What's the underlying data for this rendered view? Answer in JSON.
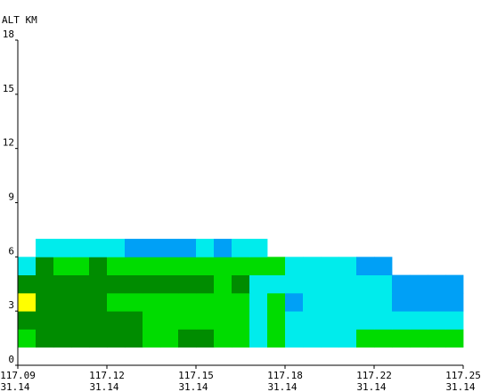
{
  "chart_data": {
    "type": "heatmap",
    "title": "",
    "ylabel": "ALT KM",
    "xlabel": "",
    "ylim": [
      0,
      18
    ],
    "y_ticks": [
      0,
      3,
      6,
      9,
      12,
      15,
      18
    ],
    "x_ticks": [
      {
        "lon": "117.09",
        "lat": "31.14"
      },
      {
        "lon": "117.12",
        "lat": "31.14"
      },
      {
        "lon": "117.15",
        "lat": "31.14"
      },
      {
        "lon": "117.18",
        "lat": "31.14"
      },
      {
        "lon": "117.22",
        "lat": "31.14"
      },
      {
        "lon": "117.25",
        "lat": "31.14"
      }
    ],
    "grid": false,
    "legend": "none",
    "palette": {
      "1": "#ffff00",
      "2": "#008c00",
      "3": "#00dc00",
      "4": "#00ecec",
      "5": "#00a0f6"
    },
    "columns": 25,
    "layer_km": 1,
    "layers": [
      {
        "alt": [
          1,
          2
        ],
        "cells": [
          3,
          2,
          2,
          2,
          2,
          2,
          2,
          3,
          3,
          2,
          2,
          3,
          3,
          4,
          3,
          4,
          4,
          4,
          4,
          3,
          3,
          3,
          3,
          3,
          3
        ]
      },
      {
        "alt": [
          2,
          3
        ],
        "cells": [
          2,
          2,
          2,
          2,
          2,
          2,
          2,
          3,
          3,
          3,
          3,
          3,
          3,
          4,
          3,
          4,
          4,
          4,
          4,
          4,
          4,
          4,
          4,
          4,
          4
        ]
      },
      {
        "alt": [
          3,
          4
        ],
        "cells": [
          1,
          2,
          2,
          2,
          2,
          3,
          3,
          3,
          3,
          3,
          3,
          3,
          3,
          4,
          3,
          5,
          4,
          4,
          4,
          4,
          4,
          5,
          5,
          5,
          5
        ]
      },
      {
        "alt": [
          4,
          5
        ],
        "cells": [
          2,
          2,
          2,
          2,
          2,
          2,
          2,
          2,
          2,
          2,
          2,
          3,
          2,
          4,
          4,
          4,
          4,
          4,
          4,
          4,
          4,
          5,
          5,
          5,
          5
        ]
      },
      {
        "alt": [
          5,
          6
        ],
        "cells": [
          4,
          2,
          3,
          3,
          2,
          3,
          3,
          3,
          3,
          3,
          3,
          3,
          3,
          3,
          3,
          4,
          4,
          4,
          4,
          5,
          5,
          0,
          0,
          0,
          0
        ]
      },
      {
        "alt": [
          6,
          7
        ],
        "cells": [
          0,
          4,
          4,
          4,
          4,
          4,
          5,
          5,
          5,
          5,
          4,
          5,
          4,
          4,
          0,
          0,
          0,
          0,
          0,
          0,
          0,
          0,
          0,
          0,
          0
        ]
      }
    ]
  }
}
